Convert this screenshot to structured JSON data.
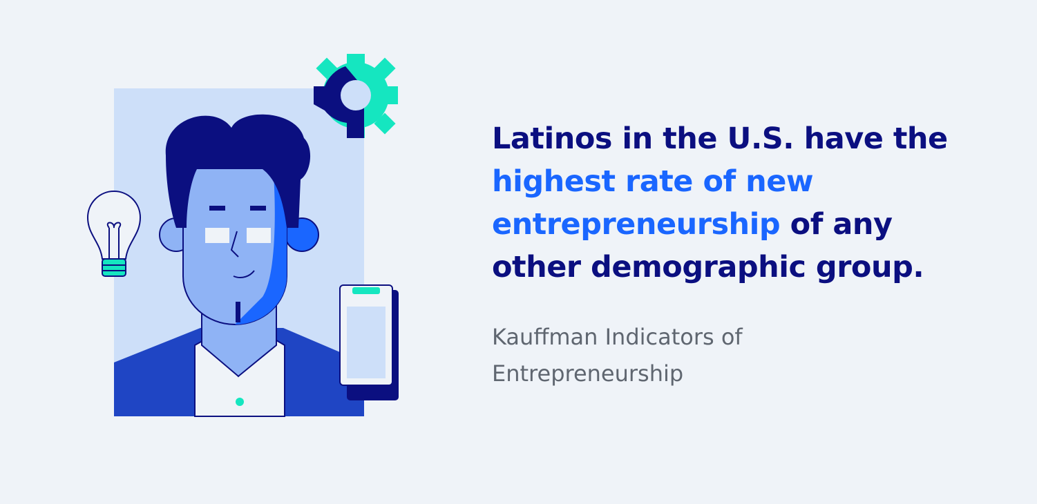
{
  "headline": {
    "parts": [
      "Latinos in the U.S. have the",
      "highest rate of new entrepreneurship",
      "of any other demographic group."
    ]
  },
  "source": "Kauffman Indicators of Entrepreneurship"
}
